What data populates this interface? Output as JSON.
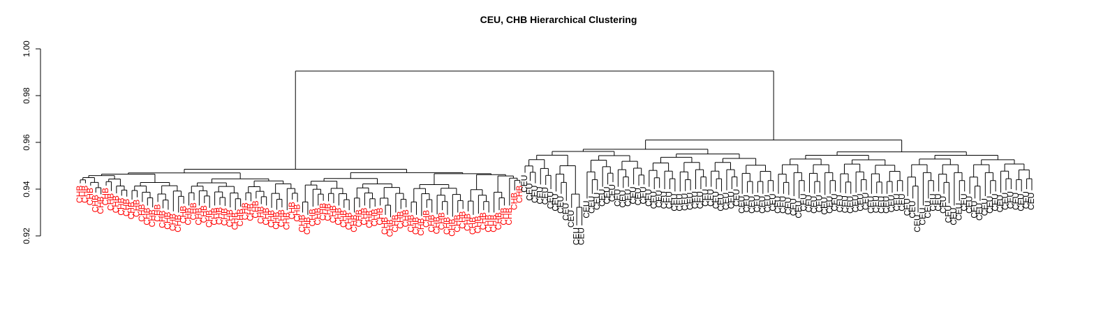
{
  "chart_data": {
    "type": "dendrogram",
    "title": "CEU, CHB Hierarchical Clustering",
    "xlabel": "",
    "ylabel": "",
    "ylim": [
      0.92,
      1.0
    ],
    "y_ticks": [
      "0.92",
      "0.94",
      "0.96",
      "0.98",
      "1.00"
    ],
    "y_tick_values": [
      0.92,
      0.94,
      0.96,
      0.98,
      1.0
    ],
    "grid": false,
    "groups": [
      {
        "name": "CHB",
        "color": "#ff0000",
        "leaf_count": 86,
        "merge_height": 0.9485,
        "leaf_heights": [
          0.9425,
          0.9425,
          0.9415,
          0.9385,
          0.9378,
          0.9415,
          0.9392,
          0.9382,
          0.9372,
          0.9368,
          0.9355,
          0.9365,
          0.9345,
          0.933,
          0.9322,
          0.9345,
          0.9318,
          0.9312,
          0.9305,
          0.93,
          0.9338,
          0.933,
          0.9352,
          0.933,
          0.934,
          0.932,
          0.933,
          0.9332,
          0.9328,
          0.9322,
          0.931,
          0.9325,
          0.9352,
          0.9348,
          0.936,
          0.9336,
          0.933,
          0.932,
          0.9312,
          0.9322,
          0.931,
          0.9355,
          0.9345,
          0.93,
          0.929,
          0.9325,
          0.933,
          0.935,
          0.9348,
          0.934,
          0.933,
          0.932,
          0.931,
          0.93,
          0.9322,
          0.933,
          0.9318,
          0.9325,
          0.933,
          0.929,
          0.928,
          0.93,
          0.9315,
          0.9322,
          0.93,
          0.929,
          0.9285,
          0.932,
          0.93,
          0.9292,
          0.931,
          0.929,
          0.9282,
          0.93,
          0.9315,
          0.9305,
          0.929,
          0.9295,
          0.931,
          0.93,
          0.93,
          0.931,
          0.933,
          0.933,
          0.9395,
          0.9425
        ]
      },
      {
        "name": "CEU",
        "color": "#000000",
        "leaf_count": 99,
        "merge_height": 0.961,
        "leaf_heights": [
          0.947,
          0.9435,
          0.9425,
          0.942,
          0.9418,
          0.94,
          0.939,
          0.938,
          0.935,
          0.932,
          0.9245,
          0.9245,
          0.936,
          0.938,
          0.9395,
          0.941,
          0.942,
          0.943,
          0.941,
          0.9405,
          0.941,
          0.942,
          0.9415,
          0.942,
          0.941,
          0.94,
          0.9405,
          0.94,
          0.94,
          0.939,
          0.939,
          0.9392,
          0.9395,
          0.94,
          0.94,
          0.941,
          0.941,
          0.94,
          0.939,
          0.9395,
          0.94,
          0.941,
          0.938,
          0.9385,
          0.938,
          0.9385,
          0.938,
          0.9385,
          0.939,
          0.938,
          0.938,
          0.9375,
          0.937,
          0.936,
          0.939,
          0.9385,
          0.938,
          0.9385,
          0.9375,
          0.938,
          0.939,
          0.9385,
          0.9382,
          0.938,
          0.9385,
          0.939,
          0.9395,
          0.938,
          0.9382,
          0.938,
          0.938,
          0.9385,
          0.939,
          0.939,
          0.937,
          0.936,
          0.93,
          0.933,
          0.936,
          0.939,
          0.939,
          0.938,
          0.934,
          0.933,
          0.935,
          0.939,
          0.938,
          0.936,
          0.935,
          0.937,
          0.938,
          0.939,
          0.9385,
          0.9395,
          0.94,
          0.9395,
          0.939,
          0.94,
          0.9395
        ]
      }
    ],
    "root_height": 0.9905
  }
}
